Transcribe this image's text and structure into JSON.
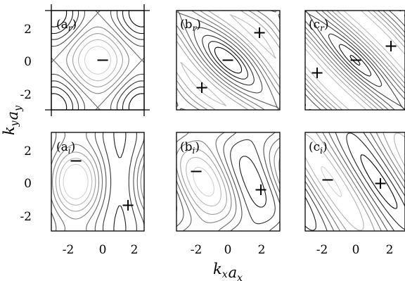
{
  "figure": {
    "x_axis_label": "k_x a_x",
    "y_axis_label": "k_y a_y",
    "x_ticks": [
      "-2",
      "0",
      "2"
    ],
    "y_ticks": [
      "2",
      "0",
      "-2"
    ],
    "contour_color_range": [
      "#d2d2d2",
      "#000000"
    ],
    "panels": [
      {
        "id": "ar",
        "label_main": "a",
        "label_sub": "r",
        "signs": [
          "−"
        ]
      },
      {
        "id": "br",
        "label_main": "b",
        "label_sub": "r",
        "signs": [
          "−",
          "+",
          "+"
        ]
      },
      {
        "id": "cr",
        "label_main": "c",
        "label_sub": "r",
        "signs": [
          "−",
          "+",
          "+"
        ]
      },
      {
        "id": "ai",
        "label_main": "a",
        "label_sub": "i",
        "signs": [
          "−",
          "+"
        ]
      },
      {
        "id": "bi",
        "label_main": "b",
        "label_sub": "i",
        "signs": [
          "−",
          "+"
        ]
      },
      {
        "id": "ci",
        "label_main": "c",
        "label_sub": "i",
        "signs": [
          "−",
          "+"
        ]
      }
    ]
  }
}
